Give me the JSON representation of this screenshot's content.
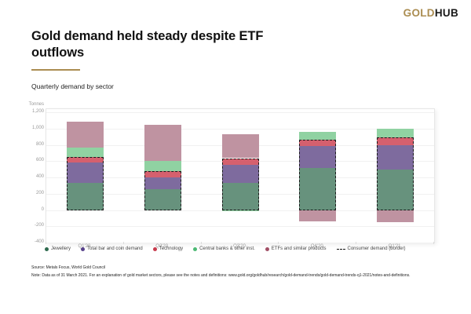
{
  "logo": {
    "part1": "GOLD",
    "part2": "HUB",
    "gold_color": "#ab8d51"
  },
  "header": {
    "title": "Gold demand held steady despite ETF outflows",
    "subtitle": "Quarterly demand by sector",
    "underline_color": "#ab8d51"
  },
  "chart_data": {
    "type": "bar",
    "stacked": true,
    "unit_label": "Tonnes",
    "categories": [
      "Q1'20",
      "Q2'20",
      "Q3'20",
      "Q4'20",
      "Q1'21"
    ],
    "series": [
      {
        "name": "Jewellery",
        "values": [
          330,
          255,
          335,
          520,
          495
        ],
        "fill": "#67927d",
        "dot": "#2e6a4e"
      },
      {
        "name": "Total bar and coin demand",
        "values": [
          250,
          148,
          222,
          270,
          300
        ],
        "fill": "#7e6b9e",
        "dot": "#57418a"
      },
      {
        "name": "Technology",
        "values": [
          72,
          75,
          80,
          72,
          95
        ],
        "fill": "#d5606e",
        "dot": "#c73a4c"
      },
      {
        "name": "Central banks & other inst.",
        "values": [
          115,
          125,
          -10,
          95,
          105
        ],
        "fill": "#90d2a2",
        "dot": "#4cb974"
      },
      {
        "name": "ETFs and similar products",
        "values": [
          320,
          445,
          290,
          -140,
          -150
        ],
        "fill": "#bf93a1",
        "dot": "#a14f66"
      }
    ],
    "consumer_border": {
      "legend_label": "Consumer demand (border)",
      "series_included": [
        0,
        1,
        2
      ],
      "color": "#1a1a1a"
    },
    "ylim": [
      -400,
      1240
    ],
    "yticks": [
      {
        "v": 1200,
        "label": "1,200"
      },
      {
        "v": 1000,
        "label": "1,000"
      },
      {
        "v": 800,
        "label": "800"
      },
      {
        "v": 600,
        "label": "600"
      },
      {
        "v": 400,
        "label": "400"
      },
      {
        "v": 200,
        "label": "200"
      },
      {
        "v": 0,
        "label": "0"
      },
      {
        "v": -200,
        "label": "-200"
      },
      {
        "v": -400,
        "label": "-400"
      }
    ],
    "grid": true,
    "legend_position": "bottom"
  },
  "footer": {
    "source": "Source: Metals Focus, World Gold Council",
    "note": "Note: Data as of 31 March 2021. For an explanation of gold market sectors, please see the notes and definitions: www.gold.org/goldhub/research/gold-demand-trends/gold-demand-trends-q1-2021/notes-and-definitions."
  }
}
